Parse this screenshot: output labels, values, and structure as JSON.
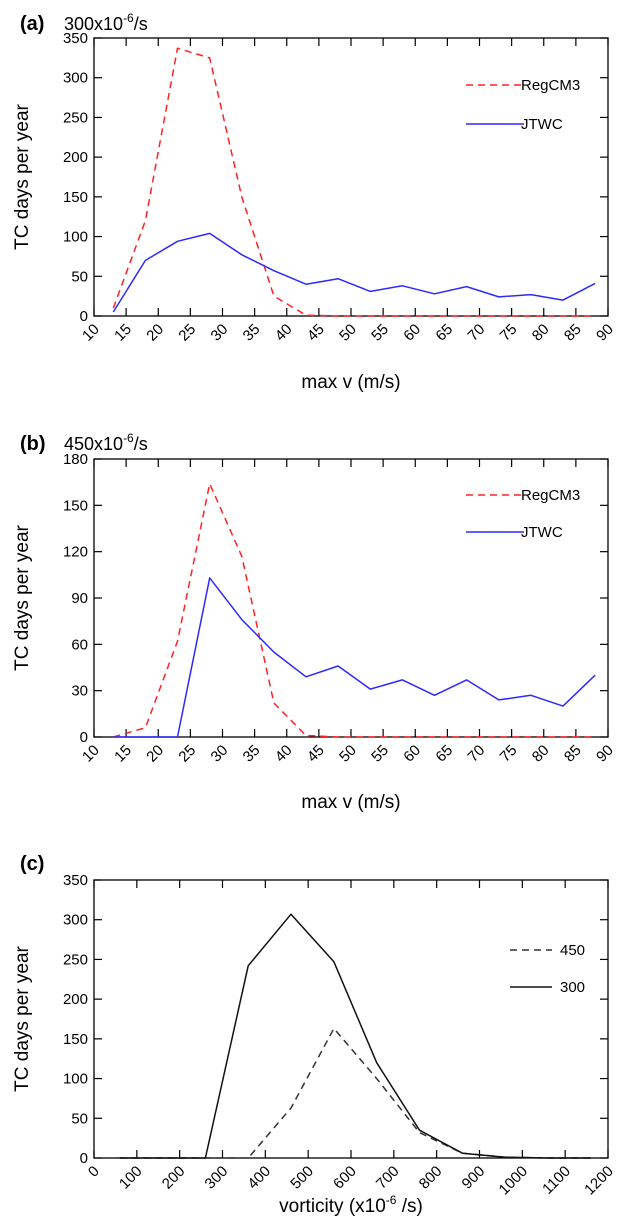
{
  "chart_data": [
    {
      "type": "line",
      "panel_label": "(a)",
      "subtitle": "300x10-6/s",
      "subtitle_base": "300x10",
      "subtitle_exp": "-6",
      "subtitle_unit": "/s",
      "xlabel": "max v (m/s)",
      "ylabel": "TC days per year",
      "xlim": [
        10,
        90
      ],
      "ylim": [
        0,
        350
      ],
      "xticks": [
        10,
        15,
        20,
        25,
        30,
        35,
        40,
        45,
        50,
        55,
        60,
        65,
        70,
        75,
        80,
        85,
        90
      ],
      "xtick_labels": [
        "10",
        "15",
        "20",
        "25",
        "30",
        "35",
        "40",
        "45",
        "50",
        "55",
        "60",
        "65",
        "70",
        "75",
        "80",
        "85",
        "90"
      ],
      "yticks": [
        0,
        50,
        100,
        150,
        200,
        250,
        300,
        350
      ],
      "ytick_labels": [
        "0",
        "50",
        "100",
        "150",
        "200",
        "250",
        "300",
        "350"
      ],
      "legend_position": "top-right",
      "x": [
        13,
        18,
        23,
        28,
        33,
        38,
        43,
        48,
        53,
        58,
        63,
        68,
        73,
        78,
        83,
        88
      ],
      "series": [
        {
          "name": "RegCM3",
          "color": "#ff2222",
          "dash": "dashed",
          "values": [
            10,
            120,
            337,
            325,
            150,
            25,
            1,
            0,
            0,
            0,
            0,
            0,
            0,
            0,
            0,
            0
          ]
        },
        {
          "name": "JTWC",
          "color": "#2a2aff",
          "dash": "solid",
          "values": [
            5,
            70,
            94,
            104,
            77,
            57,
            40,
            47,
            31,
            38,
            28,
            37,
            24,
            27,
            20,
            41
          ]
        }
      ]
    },
    {
      "type": "line",
      "panel_label": "(b)",
      "subtitle": "450x10-6/s",
      "subtitle_base": "450x10",
      "subtitle_exp": "-6",
      "subtitle_unit": "/s",
      "xlabel": "max v (m/s)",
      "ylabel": "TC days per year",
      "xlim": [
        10,
        90
      ],
      "ylim": [
        0,
        180
      ],
      "xticks": [
        10,
        15,
        20,
        25,
        30,
        35,
        40,
        45,
        50,
        55,
        60,
        65,
        70,
        75,
        80,
        85,
        90
      ],
      "xtick_labels": [
        "10",
        "15",
        "20",
        "25",
        "30",
        "35",
        "40",
        "45",
        "50",
        "55",
        "60",
        "65",
        "70",
        "75",
        "80",
        "85",
        "90"
      ],
      "yticks": [
        0,
        30,
        60,
        90,
        120,
        150,
        180
      ],
      "ytick_labels": [
        "0",
        "30",
        "60",
        "90",
        "120",
        "150",
        "180"
      ],
      "legend_position": "top-right",
      "series": [
        {
          "name": "RegCM3",
          "color": "#ff2222",
          "dash": "dashed",
          "x": [
            13,
            18,
            23,
            28,
            33,
            38,
            43,
            48,
            53,
            58,
            63,
            68,
            73,
            78,
            83,
            88
          ],
          "values": [
            0,
            6,
            62,
            164,
            117,
            22,
            1,
            0,
            0,
            0,
            0,
            0,
            0,
            0,
            0,
            0
          ]
        },
        {
          "name": "JTWC",
          "color": "#2a2aff",
          "dash": "solid",
          "x": [
            13,
            18,
            23,
            28,
            33,
            38,
            43,
            48,
            53,
            58,
            63,
            68,
            73,
            78,
            83,
            88
          ],
          "values": [
            0,
            0,
            0,
            103,
            76,
            55,
            39,
            46,
            31,
            37,
            27,
            37,
            24,
            27,
            20,
            40
          ]
        }
      ]
    },
    {
      "type": "line",
      "panel_label": "(c)",
      "xlabel": "vorticity (x10-6 /s)",
      "xlabel_base": "vorticity (x10",
      "xlabel_exp": "-6",
      "xlabel_unit": " /s)",
      "ylabel": "TC days per year",
      "xlim": [
        0,
        1200
      ],
      "ylim": [
        0,
        350
      ],
      "xticks": [
        0,
        100,
        200,
        300,
        400,
        500,
        600,
        700,
        800,
        900,
        1000,
        1100,
        1200
      ],
      "xtick_labels": [
        "0",
        "100",
        "200",
        "300",
        "400",
        "500",
        "600",
        "700",
        "800",
        "900",
        "1000",
        "1100",
        "1200"
      ],
      "yticks": [
        0,
        50,
        100,
        150,
        200,
        250,
        300,
        350
      ],
      "ytick_labels": [
        "0",
        "50",
        "100",
        "150",
        "200",
        "250",
        "300",
        "350"
      ],
      "legend_position": "top-right",
      "x": [
        60,
        160,
        260,
        360,
        460,
        560,
        660,
        760,
        860,
        960,
        1060,
        1160
      ],
      "series": [
        {
          "name": "450",
          "color": "#333333",
          "dash": "dashed",
          "values": [
            0,
            0,
            0,
            0,
            63,
            163,
            100,
            32,
            6,
            1,
            0,
            0
          ]
        },
        {
          "name": "300",
          "color": "#111111",
          "dash": "solid",
          "values": [
            0,
            0,
            0,
            242,
            307,
            247,
            120,
            35,
            6,
            1,
            0,
            0
          ]
        }
      ]
    }
  ]
}
